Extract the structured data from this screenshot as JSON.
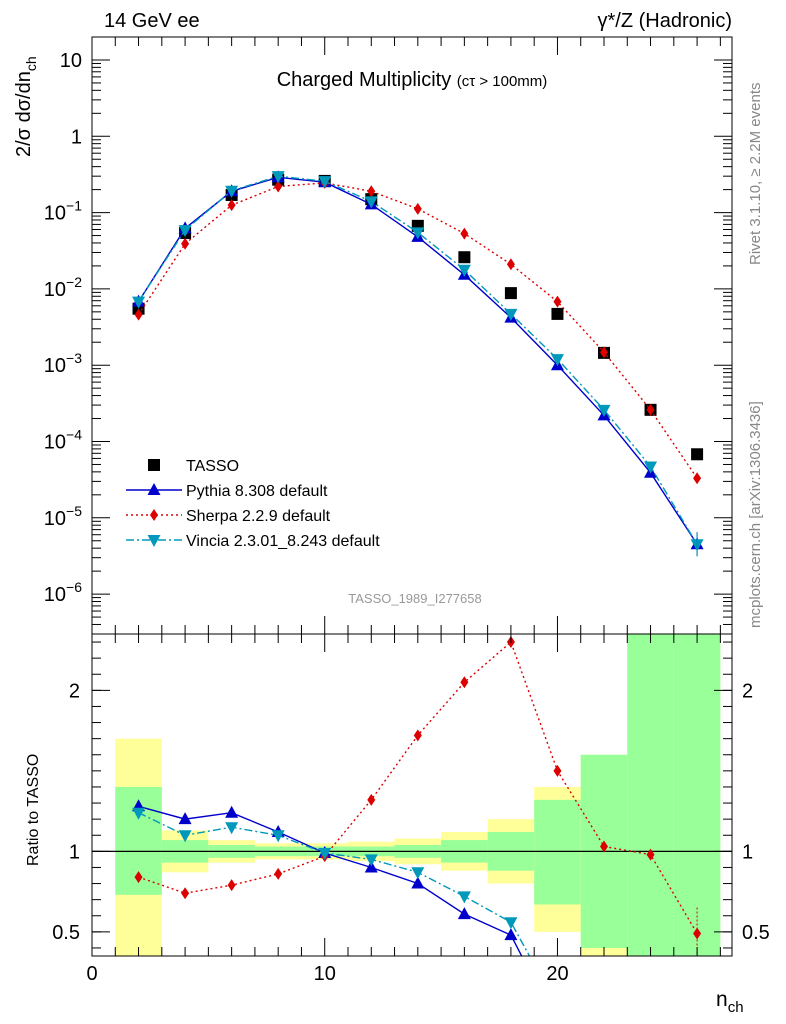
{
  "header": {
    "left": "14 GeV ee",
    "right": "γ*/Z (Hadronic)"
  },
  "side_labels": {
    "top": "Rivet 3.1.10, ≥ 2.2M events",
    "bottom": "mcplots.cern.ch [arXiv:1306.3436]"
  },
  "chart_data": [
    {
      "type": "scatter",
      "title": "Charged Multiplicity",
      "subtitle": "(cτ > 100mm)",
      "ylabel": "2/σ dσ/dn_ch",
      "yscale": "log",
      "ylim": [
        3e-07,
        20
      ],
      "xlim": [
        0,
        27.5
      ],
      "watermark": "TASSO_1989_I277658",
      "legend_position": "bottom-left",
      "y_tick_labels": [
        {
          "value": 1e-06,
          "base": "10",
          "exp": "−6"
        },
        {
          "value": 1e-05,
          "base": "10",
          "exp": "−5"
        },
        {
          "value": 0.0001,
          "base": "10",
          "exp": "−4"
        },
        {
          "value": 0.001,
          "base": "10",
          "exp": "−3"
        },
        {
          "value": 0.01,
          "base": "10",
          "exp": "−2"
        },
        {
          "value": 0.1,
          "base": "10",
          "exp": "−1"
        },
        {
          "value": 1,
          "base": "1",
          "exp": ""
        },
        {
          "value": 10,
          "base": "10",
          "exp": ""
        }
      ],
      "series": [
        {
          "name": "TASSO",
          "style": "data",
          "color": "#000000",
          "marker": "square",
          "x": [
            2,
            4,
            6,
            8,
            10,
            12,
            14,
            16,
            18,
            20,
            22,
            24,
            26
          ],
          "y": [
            0.0055,
            0.054,
            0.17,
            0.27,
            0.26,
            0.15,
            0.067,
            0.026,
            0.0088,
            0.0047,
            0.00145,
            0.00026,
            6.8e-05
          ]
        },
        {
          "name": "Pythia 8.308 default",
          "style": "solid",
          "color": "#0000cc",
          "marker": "triangle-up",
          "x": [
            2,
            4,
            6,
            8,
            10,
            12,
            14,
            16,
            18,
            20,
            22,
            24,
            26
          ],
          "y": [
            0.0068,
            0.062,
            0.19,
            0.29,
            0.25,
            0.128,
            0.048,
            0.0153,
            0.0042,
            0.001,
            0.00022,
            3.9e-05,
            4.5e-06
          ]
        },
        {
          "name": "Sherpa 2.2.9 default",
          "style": "dotted",
          "color": "#dd0000",
          "marker": "diamond",
          "x": [
            2,
            4,
            6,
            8,
            10,
            12,
            14,
            16,
            18,
            20,
            22,
            24,
            26
          ],
          "y": [
            0.0046,
            0.039,
            0.125,
            0.22,
            0.245,
            0.19,
            0.112,
            0.053,
            0.021,
            0.0068,
            0.00148,
            0.00026,
            3.3e-05
          ]
        },
        {
          "name": "Vincia 2.3.01_8.243 default",
          "style": "dashdot",
          "color": "#0099bb",
          "marker": "triangle-down",
          "x": [
            2,
            4,
            6,
            8,
            10,
            12,
            14,
            16,
            18,
            20,
            22,
            24,
            26
          ],
          "y": [
            0.0068,
            0.059,
            0.193,
            0.3,
            0.258,
            0.14,
            0.055,
            0.0178,
            0.0047,
            0.0012,
            0.00026,
            4.7e-05,
            4.5e-06
          ]
        }
      ]
    },
    {
      "type": "scatter",
      "ylabel": "Ratio to TASSO",
      "xlabel": "n_ch",
      "xlim": [
        0,
        27.5
      ],
      "ylim": [
        0.35,
        2.35
      ],
      "x_ticks": [
        0,
        10,
        20
      ],
      "y_ticks": [
        0.5,
        1,
        2
      ],
      "reference_line": 1,
      "bands": [
        {
          "x0": 1,
          "x1": 3,
          "outer": [
            0.0,
            1.7
          ],
          "inner": [
            0.73,
            1.4
          ]
        },
        {
          "x0": 3,
          "x1": 5,
          "outer": [
            0.87,
            1.13
          ],
          "inner": [
            0.93,
            1.07
          ]
        },
        {
          "x0": 5,
          "x1": 7,
          "outer": [
            0.93,
            1.07
          ],
          "inner": [
            0.96,
            1.04
          ]
        },
        {
          "x0": 7,
          "x1": 9,
          "outer": [
            0.95,
            1.05
          ],
          "inner": [
            0.97,
            1.03
          ]
        },
        {
          "x0": 9,
          "x1": 11,
          "outer": [
            0.95,
            1.05
          ],
          "inner": [
            0.97,
            1.03
          ]
        },
        {
          "x0": 11,
          "x1": 13,
          "outer": [
            0.94,
            1.06
          ],
          "inner": [
            0.97,
            1.03
          ]
        },
        {
          "x0": 13,
          "x1": 15,
          "outer": [
            0.92,
            1.08
          ],
          "inner": [
            0.96,
            1.04
          ]
        },
        {
          "x0": 15,
          "x1": 17,
          "outer": [
            0.88,
            1.12
          ],
          "inner": [
            0.93,
            1.07
          ]
        },
        {
          "x0": 17,
          "x1": 19,
          "outer": [
            0.8,
            1.2
          ],
          "inner": [
            0.88,
            1.12
          ]
        },
        {
          "x0": 19,
          "x1": 21,
          "outer": [
            0.5,
            1.4
          ],
          "inner": [
            0.67,
            1.32
          ]
        },
        {
          "x0": 21,
          "x1": 23,
          "outer": [
            0.0,
            1.6
          ],
          "inner": [
            0.4,
            1.6
          ]
        },
        {
          "x0": 23,
          "x1": 25,
          "outer": [
            0.0,
            2.35
          ],
          "inner": [
            0.0,
            2.35
          ]
        },
        {
          "x0": 25,
          "x1": 27,
          "outer": [
            0.0,
            2.35
          ],
          "inner": [
            0.0,
            2.35
          ]
        }
      ],
      "series": [
        {
          "name": "Pythia 8.308 default",
          "style": "solid",
          "color": "#0000cc",
          "marker": "triangle-up",
          "x": [
            2,
            4,
            6,
            8,
            10,
            12,
            14,
            16,
            18
          ],
          "y": [
            1.28,
            1.2,
            1.24,
            1.12,
            0.99,
            0.9,
            0.8,
            0.61,
            0.48
          ],
          "tail": [
            [
              18.5,
              0.34
            ]
          ]
        },
        {
          "name": "Sherpa 2.2.9 default",
          "style": "dotted",
          "color": "#dd0000",
          "marker": "diamond",
          "x": [
            2,
            4,
            6,
            8,
            10,
            12,
            14,
            16,
            18,
            20,
            22,
            24,
            26
          ],
          "y": [
            0.84,
            0.74,
            0.79,
            0.86,
            0.97,
            1.32,
            1.72,
            2.05,
            2.3,
            1.5,
            1.03,
            0.98,
            0.49
          ]
        },
        {
          "name": "Vincia 2.3.01_8.243 default",
          "style": "dashdot",
          "color": "#0099bb",
          "marker": "triangle-down",
          "x": [
            2,
            4,
            6,
            8,
            10,
            12,
            14,
            16,
            18
          ],
          "y": [
            1.24,
            1.1,
            1.15,
            1.1,
            0.99,
            0.95,
            0.87,
            0.72,
            0.56
          ],
          "tail": [
            [
              18.8,
              0.35
            ]
          ]
        }
      ]
    }
  ]
}
